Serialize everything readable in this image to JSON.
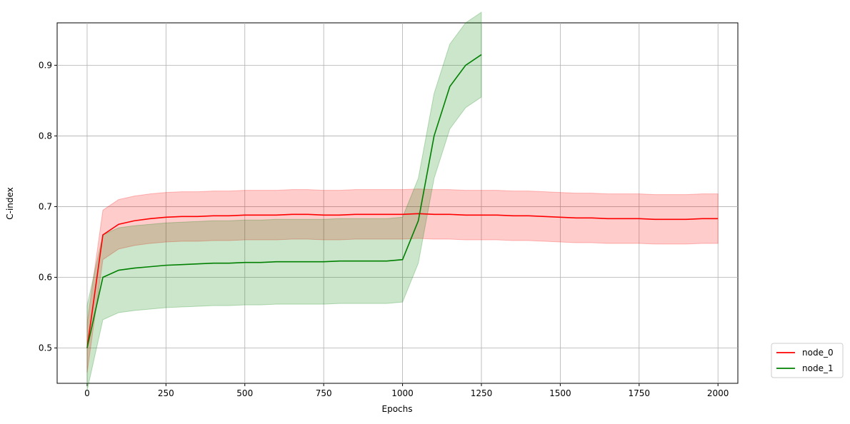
{
  "chart_data": {
    "type": "line",
    "x_label": "Epochs",
    "y_label": "C-index",
    "x": [
      0,
      50,
      100,
      150,
      200,
      250,
      300,
      350,
      400,
      450,
      500,
      550,
      600,
      650,
      700,
      750,
      800,
      850,
      900,
      950,
      1000,
      1050,
      1100,
      1150,
      1200,
      1250,
      1300,
      1350,
      1400,
      1450,
      1500,
      1550,
      1600,
      1650,
      1700,
      1750,
      1800,
      1850,
      1900,
      1950,
      2000
    ],
    "series": [
      {
        "name": "node_0",
        "color": "#ff0000",
        "std": 0.035,
        "values": [
          0.5,
          0.66,
          0.675,
          0.68,
          0.683,
          0.685,
          0.686,
          0.686,
          0.687,
          0.687,
          0.688,
          0.688,
          0.688,
          0.689,
          0.689,
          0.688,
          0.688,
          0.689,
          0.689,
          0.689,
          0.689,
          0.69,
          0.689,
          0.689,
          0.688,
          0.688,
          0.688,
          0.687,
          0.687,
          0.686,
          0.685,
          0.684,
          0.684,
          0.683,
          0.683,
          0.683,
          0.682,
          0.682,
          0.682,
          0.683,
          0.683
        ]
      },
      {
        "name": "node_1",
        "color": "#008000",
        "std": 0.06,
        "values": [
          0.5,
          0.6,
          0.61,
          0.613,
          0.615,
          0.617,
          0.618,
          0.619,
          0.62,
          0.62,
          0.621,
          0.621,
          0.622,
          0.622,
          0.622,
          0.622,
          0.623,
          0.623,
          0.623,
          0.623,
          0.625,
          0.68,
          0.8,
          0.87,
          0.9,
          0.915,
          null,
          null,
          null,
          null,
          null,
          null,
          null,
          null,
          null,
          null,
          null,
          null,
          null,
          null,
          null
        ]
      }
    ],
    "xlim": [
      -95,
      2063
    ],
    "ylim": [
      0.45,
      0.96
    ],
    "xticks": [
      0,
      250,
      500,
      750,
      1000,
      1250,
      1500,
      1750,
      2000
    ],
    "yticks": [
      0.5,
      0.6,
      0.7,
      0.8,
      0.9
    ],
    "grid": true,
    "legend": "outside lower right"
  }
}
